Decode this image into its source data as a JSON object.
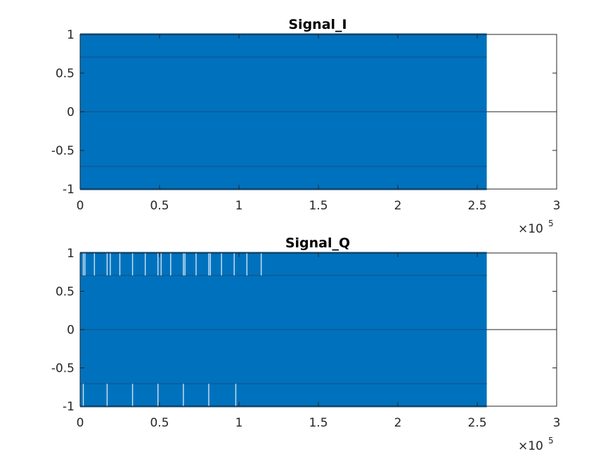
{
  "figure": {
    "background": "#ffffff"
  },
  "chart_data": [
    {
      "type": "line",
      "title": "Signal_I",
      "xlabel": "",
      "ylabel": "",
      "xlim": [
        0,
        300000
      ],
      "ylim": [
        -1,
        1
      ],
      "x_ticks": [
        0,
        0.5,
        1,
        1.5,
        2,
        2.5,
        3
      ],
      "x_tick_labels": [
        "0",
        "0.5",
        "1",
        "1.5",
        "2",
        "2.5",
        "3"
      ],
      "x_exponent_label": "×10",
      "x_exponent": "5",
      "y_ticks": [
        -1,
        -0.5,
        0,
        0.5,
        1
      ],
      "y_tick_labels": [
        "-1",
        "-0.5",
        "0",
        "0.5",
        "1"
      ],
      "grid": false,
      "series": [
        {
          "color": "#0072bd",
          "x_range": [
            0,
            256000
          ],
          "value_range": [
            -1,
            1
          ],
          "levels": [
            -1,
            -0.7071,
            0,
            0.7071,
            1
          ],
          "dense": true,
          "gaps": []
        }
      ]
    },
    {
      "type": "line",
      "title": "Signal_Q",
      "xlabel": "",
      "ylabel": "",
      "xlim": [
        0,
        300000
      ],
      "ylim": [
        -1,
        1
      ],
      "x_ticks": [
        0,
        0.5,
        1,
        1.5,
        2,
        2.5,
        3
      ],
      "x_tick_labels": [
        "0",
        "0.5",
        "1",
        "1.5",
        "2",
        "2.5",
        "3"
      ],
      "x_exponent_label": "×10",
      "x_exponent": "5",
      "y_ticks": [
        -1,
        -0.5,
        0,
        0.5,
        1
      ],
      "y_tick_labels": [
        "-1",
        "-0.5",
        "0",
        "0.5",
        "1"
      ],
      "grid": false,
      "series": [
        {
          "color": "#0072bd",
          "x_range": [
            0,
            256000
          ],
          "value_range": [
            -1,
            1
          ],
          "levels": [
            -1,
            -0.7071,
            0,
            0.7071,
            1
          ],
          "dense": true,
          "gaps": [
            {
              "band": [
                0.7071,
                1
              ],
              "x": [
                2000,
                3000,
                9000,
                17000,
                19000,
                25000,
                33000,
                41000,
                49000,
                51000,
                57000,
                65000,
                66000,
                73000,
                81000,
                82000,
                89000,
                97000,
                105000,
                114000
              ]
            },
            {
              "band": [
                -1,
                -0.7071
              ],
              "x": [
                2000,
                17000,
                33000,
                49000,
                65000,
                81000,
                98000
              ]
            }
          ]
        }
      ]
    }
  ]
}
